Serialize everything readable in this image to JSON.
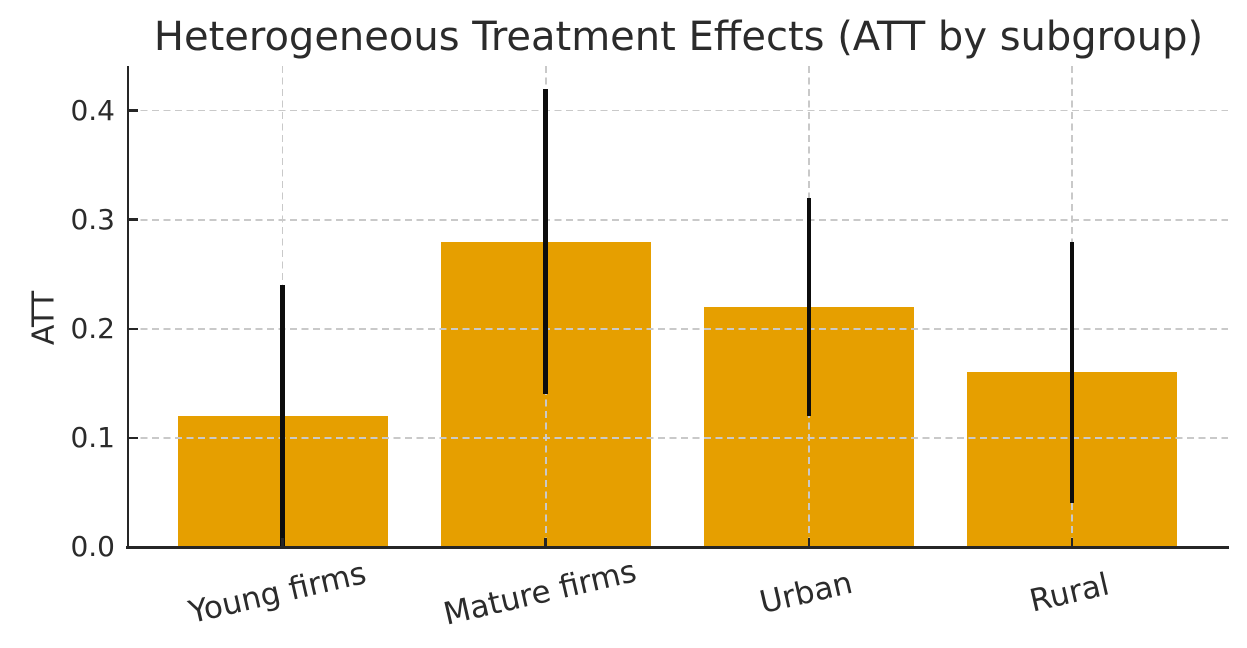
{
  "chart_data": {
    "type": "bar",
    "title": "Heterogeneous Treatment Effects (ATT by subgroup)",
    "xlabel": "",
    "ylabel": "ATT",
    "categories": [
      "Young firms",
      "Mature firms",
      "Urban",
      "Rural"
    ],
    "series": [
      {
        "name": "ATT",
        "values": [
          0.12,
          0.28,
          0.22,
          0.16
        ]
      }
    ],
    "error_bars": {
      "low": [
        0.0,
        0.14,
        0.12,
        0.04
      ],
      "high": [
        0.24,
        0.42,
        0.32,
        0.28
      ]
    },
    "ylim": [
      0,
      0.441
    ],
    "yticks": [
      0.0,
      0.1,
      0.2,
      0.3,
      0.4
    ],
    "ytick_labels": [
      "0.0",
      "0.1",
      "0.2",
      "0.3",
      "0.4"
    ],
    "grid": "dashed horizontal and vertical gridlines, drawn over bars",
    "legend": "none",
    "colors": {
      "bar": "#E69F00",
      "error_bar": "#0d0d0d",
      "grid": "#c9c9c9",
      "text": "#2b2b2b",
      "spine": "#262626"
    }
  }
}
